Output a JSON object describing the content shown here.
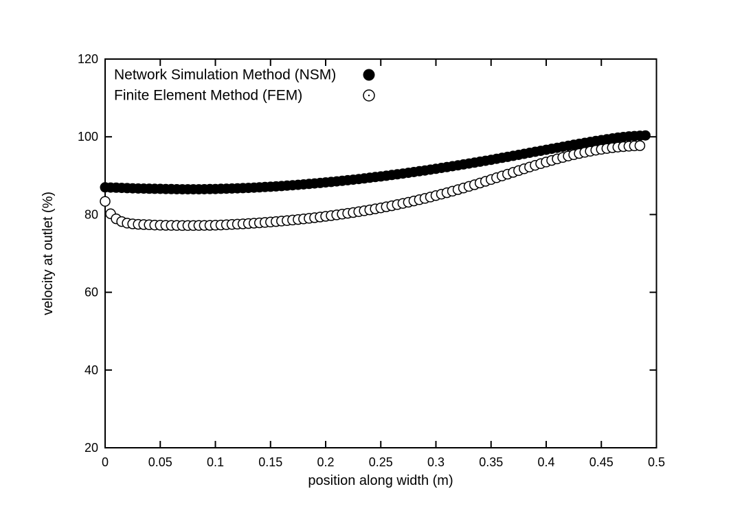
{
  "figure": {
    "background": "#ffffff",
    "foreground": "#000000"
  },
  "legend": {
    "position": "top-left-inside",
    "items": [
      {
        "label": "Network Simulation Method (NSM)",
        "marker": "filled-circle-icon"
      },
      {
        "label": "Finite Element Method (FEM)",
        "marker": "open-circle-icon"
      }
    ]
  },
  "chart_data": {
    "type": "scatter",
    "title": "",
    "xlabel": "position along width (m)",
    "ylabel": "velocity at outlet (%)",
    "xlim": [
      0,
      0.5
    ],
    "ylim": [
      20,
      120
    ],
    "grid": false,
    "legend_position": "top-left-inside",
    "x_ticks": [
      0,
      0.05,
      0.1,
      0.15,
      0.2,
      0.25,
      0.3,
      0.35,
      0.4,
      0.45,
      0.5
    ],
    "x_tick_labels": [
      "0",
      "0.05",
      "0.1",
      "0.15",
      "0.2",
      "0.25",
      "0.3",
      "0.35",
      "0.4",
      "0.45",
      "0.5"
    ],
    "y_ticks": [
      20,
      40,
      60,
      80,
      100,
      120
    ],
    "y_tick_labels": [
      "20",
      "40",
      "60",
      "80",
      "100",
      "120"
    ],
    "series": [
      {
        "name": "Network Simulation Method (NSM)",
        "marker": "filled-circle",
        "color": "#000000",
        "fill": "#000000",
        "marker_radius": 7.5,
        "points": [
          [
            0.0,
            87.0
          ],
          [
            0.005,
            86.95
          ],
          [
            0.01,
            86.9
          ],
          [
            0.015,
            86.85
          ],
          [
            0.02,
            86.8
          ],
          [
            0.025,
            86.75
          ],
          [
            0.03,
            86.7
          ],
          [
            0.035,
            86.68
          ],
          [
            0.04,
            86.65
          ],
          [
            0.045,
            86.62
          ],
          [
            0.05,
            86.6
          ],
          [
            0.055,
            86.58
          ],
          [
            0.06,
            86.55
          ],
          [
            0.065,
            86.52
          ],
          [
            0.07,
            86.5
          ],
          [
            0.075,
            86.5
          ],
          [
            0.08,
            86.5
          ],
          [
            0.085,
            86.5
          ],
          [
            0.09,
            86.52
          ],
          [
            0.095,
            86.55
          ],
          [
            0.1,
            86.58
          ],
          [
            0.105,
            86.62
          ],
          [
            0.11,
            86.66
          ],
          [
            0.115,
            86.7
          ],
          [
            0.12,
            86.75
          ],
          [
            0.125,
            86.8
          ],
          [
            0.13,
            86.86
          ],
          [
            0.135,
            86.92
          ],
          [
            0.14,
            87.0
          ],
          [
            0.145,
            87.08
          ],
          [
            0.15,
            87.16
          ],
          [
            0.155,
            87.25
          ],
          [
            0.16,
            87.34
          ],
          [
            0.165,
            87.44
          ],
          [
            0.17,
            87.54
          ],
          [
            0.175,
            87.65
          ],
          [
            0.18,
            87.76
          ],
          [
            0.185,
            87.88
          ],
          [
            0.19,
            88.0
          ],
          [
            0.195,
            88.13
          ],
          [
            0.2,
            88.26
          ],
          [
            0.205,
            88.4
          ],
          [
            0.21,
            88.54
          ],
          [
            0.215,
            88.68
          ],
          [
            0.22,
            88.83
          ],
          [
            0.225,
            88.98
          ],
          [
            0.23,
            89.14
          ],
          [
            0.235,
            89.3
          ],
          [
            0.24,
            89.47
          ],
          [
            0.245,
            89.64
          ],
          [
            0.25,
            89.81
          ],
          [
            0.255,
            89.99
          ],
          [
            0.26,
            90.17
          ],
          [
            0.265,
            90.36
          ],
          [
            0.27,
            90.55
          ],
          [
            0.275,
            90.74
          ],
          [
            0.28,
            90.94
          ],
          [
            0.285,
            91.14
          ],
          [
            0.29,
            91.35
          ],
          [
            0.295,
            91.56
          ],
          [
            0.3,
            91.77
          ],
          [
            0.305,
            91.99
          ],
          [
            0.31,
            92.21
          ],
          [
            0.315,
            92.43
          ],
          [
            0.32,
            92.66
          ],
          [
            0.325,
            92.89
          ],
          [
            0.33,
            93.12
          ],
          [
            0.335,
            93.36
          ],
          [
            0.34,
            93.6
          ],
          [
            0.345,
            93.84
          ],
          [
            0.35,
            94.09
          ],
          [
            0.355,
            94.34
          ],
          [
            0.36,
            94.59
          ],
          [
            0.365,
            94.84
          ],
          [
            0.37,
            95.1
          ],
          [
            0.375,
            95.36
          ],
          [
            0.38,
            95.62
          ],
          [
            0.385,
            95.88
          ],
          [
            0.39,
            96.14
          ],
          [
            0.395,
            96.4
          ],
          [
            0.4,
            96.66
          ],
          [
            0.405,
            96.92
          ],
          [
            0.41,
            97.18
          ],
          [
            0.415,
            97.44
          ],
          [
            0.42,
            97.7
          ],
          [
            0.425,
            97.95
          ],
          [
            0.43,
            98.2
          ],
          [
            0.435,
            98.45
          ],
          [
            0.44,
            98.7
          ],
          [
            0.445,
            98.93
          ],
          [
            0.45,
            99.16
          ],
          [
            0.455,
            99.38
          ],
          [
            0.46,
            99.59
          ],
          [
            0.465,
            99.78
          ],
          [
            0.47,
            99.95
          ],
          [
            0.475,
            100.1
          ],
          [
            0.48,
            100.2
          ],
          [
            0.485,
            100.28
          ],
          [
            0.49,
            100.35
          ]
        ]
      },
      {
        "name": "Finite Element Method (FEM)",
        "marker": "open-circle",
        "color": "#000000",
        "fill": "#ffffff",
        "marker_radius": 7,
        "points": [
          [
            0.0,
            83.4
          ],
          [
            0.005,
            80.2
          ],
          [
            0.01,
            78.9
          ],
          [
            0.015,
            78.2
          ],
          [
            0.02,
            77.8
          ],
          [
            0.025,
            77.6
          ],
          [
            0.03,
            77.5
          ],
          [
            0.035,
            77.42
          ],
          [
            0.04,
            77.36
          ],
          [
            0.045,
            77.3
          ],
          [
            0.05,
            77.26
          ],
          [
            0.055,
            77.23
          ],
          [
            0.06,
            77.2
          ],
          [
            0.065,
            77.19
          ],
          [
            0.07,
            77.18
          ],
          [
            0.075,
            77.18
          ],
          [
            0.08,
            77.18
          ],
          [
            0.085,
            77.19
          ],
          [
            0.09,
            77.2
          ],
          [
            0.095,
            77.23
          ],
          [
            0.1,
            77.27
          ],
          [
            0.105,
            77.32
          ],
          [
            0.11,
            77.38
          ],
          [
            0.115,
            77.45
          ],
          [
            0.12,
            77.52
          ],
          [
            0.125,
            77.6
          ],
          [
            0.13,
            77.68
          ],
          [
            0.135,
            77.77
          ],
          [
            0.14,
            77.87
          ],
          [
            0.145,
            77.97
          ],
          [
            0.15,
            78.08
          ],
          [
            0.155,
            78.2
          ],
          [
            0.16,
            78.32
          ],
          [
            0.165,
            78.45
          ],
          [
            0.17,
            78.58
          ],
          [
            0.175,
            78.72
          ],
          [
            0.18,
            78.87
          ],
          [
            0.185,
            79.03
          ],
          [
            0.19,
            79.19
          ],
          [
            0.195,
            79.36
          ],
          [
            0.2,
            79.54
          ],
          [
            0.205,
            79.72
          ],
          [
            0.21,
            79.91
          ],
          [
            0.215,
            80.11
          ],
          [
            0.22,
            80.31
          ],
          [
            0.225,
            80.52
          ],
          [
            0.23,
            80.74
          ],
          [
            0.235,
            80.97
          ],
          [
            0.24,
            81.21
          ],
          [
            0.245,
            81.46
          ],
          [
            0.25,
            81.72
          ],
          [
            0.255,
            81.99
          ],
          [
            0.26,
            82.27
          ],
          [
            0.265,
            82.56
          ],
          [
            0.27,
            82.86
          ],
          [
            0.275,
            83.17
          ],
          [
            0.28,
            83.49
          ],
          [
            0.285,
            83.82
          ],
          [
            0.29,
            84.16
          ],
          [
            0.295,
            84.51
          ],
          [
            0.3,
            84.87
          ],
          [
            0.305,
            85.24
          ],
          [
            0.31,
            85.62
          ],
          [
            0.315,
            86.01
          ],
          [
            0.32,
            86.41
          ],
          [
            0.325,
            86.82
          ],
          [
            0.33,
            87.24
          ],
          [
            0.335,
            87.67
          ],
          [
            0.34,
            88.11
          ],
          [
            0.345,
            88.56
          ],
          [
            0.35,
            89.01
          ],
          [
            0.355,
            89.47
          ],
          [
            0.36,
            89.93
          ],
          [
            0.365,
            90.39
          ],
          [
            0.37,
            90.85
          ],
          [
            0.375,
            91.31
          ],
          [
            0.38,
            91.77
          ],
          [
            0.385,
            92.22
          ],
          [
            0.39,
            92.66
          ],
          [
            0.395,
            93.09
          ],
          [
            0.4,
            93.51
          ],
          [
            0.405,
            93.92
          ],
          [
            0.41,
            94.31
          ],
          [
            0.415,
            94.69
          ],
          [
            0.42,
            95.05
          ],
          [
            0.425,
            95.39
          ],
          [
            0.43,
            95.71
          ],
          [
            0.435,
            96.01
          ],
          [
            0.44,
            96.29
          ],
          [
            0.445,
            96.55
          ],
          [
            0.45,
            96.79
          ],
          [
            0.455,
            97.0
          ],
          [
            0.46,
            97.19
          ],
          [
            0.465,
            97.35
          ],
          [
            0.47,
            97.48
          ],
          [
            0.475,
            97.58
          ],
          [
            0.48,
            97.66
          ],
          [
            0.485,
            97.72
          ]
        ]
      }
    ]
  }
}
